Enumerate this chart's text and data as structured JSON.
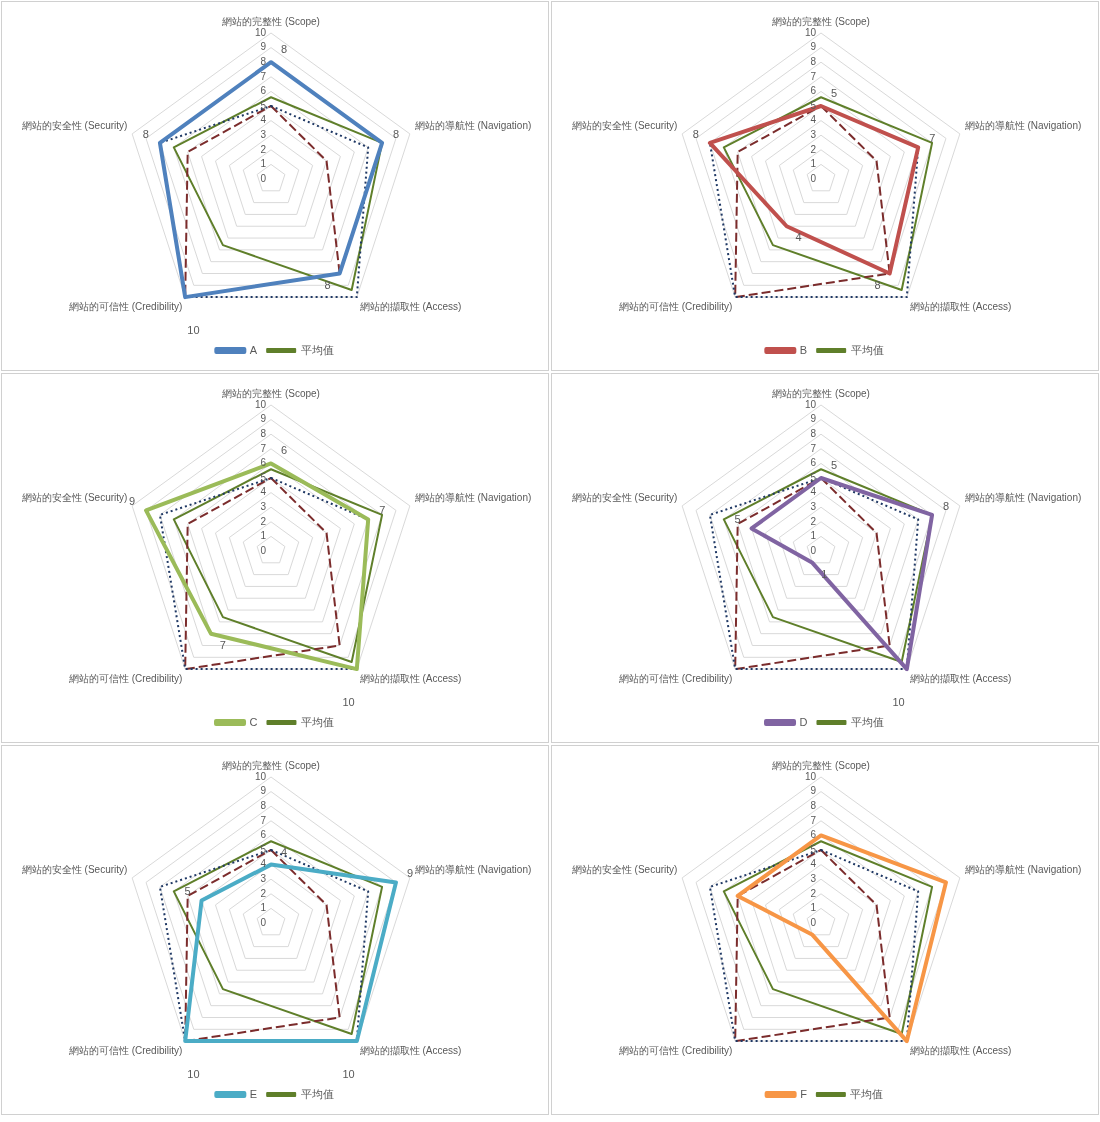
{
  "chart_data": [
    {
      "type": "radar",
      "categories": [
        "網站的完整性 (Scope)",
        "網站的導航性 (Navigation)",
        "網站的擷取性 (Access)",
        "網站的可信性 (Credibility)",
        "網站的安全性 (Security)"
      ],
      "ylim": [
        0,
        10
      ],
      "yticks": [
        0,
        1,
        2,
        3,
        4,
        5,
        6,
        7,
        8,
        9,
        10
      ],
      "grid": true,
      "legend": "bottom",
      "marker": "none",
      "series": [
        {
          "name": "A",
          "color": "#4f81bd",
          "values": [
            8,
            8,
            8,
            10,
            8
          ],
          "value_labels": [
            "8",
            "8",
            "8",
            "10",
            "8"
          ],
          "line_style": "solid"
        },
        {
          "color": "#1f3864",
          "values": [
            5,
            7,
            10,
            10,
            8
          ],
          "line_style": "dotted"
        },
        {
          "color": "#7b2c2c",
          "values": [
            5,
            4,
            8,
            10,
            6
          ],
          "line_style": "dashed"
        },
        {
          "name": "平均值",
          "color": "#5f7f2a",
          "values": [
            5.6,
            8,
            9.4,
            5.6,
            7
          ],
          "line_style": "solid"
        }
      ]
    },
    {
      "type": "radar",
      "categories": [
        "網站的完整性 (Scope)",
        "網站的導航性 (Navigation)",
        "網站的擷取性 (Access)",
        "網站的可信性 (Credibility)",
        "網站的安全性 (Security)"
      ],
      "ylim": [
        0,
        10
      ],
      "yticks": [
        0,
        1,
        2,
        3,
        4,
        5,
        6,
        7,
        8,
        9,
        10
      ],
      "grid": true,
      "legend": "bottom",
      "marker": "none",
      "series": [
        {
          "name": "B",
          "color": "#c0504d",
          "values": [
            5,
            7,
            8,
            4,
            8
          ],
          "value_labels": [
            "5",
            "7",
            "8",
            "4",
            "8"
          ],
          "line_style": "solid"
        },
        {
          "color": "#1f3864",
          "values": [
            5,
            7,
            10,
            10,
            8
          ],
          "line_style": "dotted"
        },
        {
          "color": "#7b2c2c",
          "values": [
            5,
            4,
            8,
            10,
            6
          ],
          "line_style": "dashed"
        },
        {
          "name": "平均值",
          "color": "#5f7f2a",
          "values": [
            5.6,
            8,
            9.4,
            5.6,
            7
          ],
          "line_style": "solid"
        }
      ]
    },
    {
      "type": "radar",
      "categories": [
        "網站的完整性 (Scope)",
        "網站的導航性 (Navigation)",
        "網站的擷取性 (Access)",
        "網站的可信性 (Credibility)",
        "網站的安全性 (Security)"
      ],
      "ylim": [
        0,
        10
      ],
      "yticks": [
        0,
        1,
        2,
        3,
        4,
        5,
        6,
        7,
        8,
        9,
        10
      ],
      "grid": true,
      "legend": "bottom",
      "marker": "none",
      "series": [
        {
          "name": "C",
          "color": "#9bbb59",
          "values": [
            6,
            7,
            10,
            7,
            9
          ],
          "value_labels": [
            "6",
            "7",
            "10",
            "7",
            "9"
          ],
          "line_style": "solid"
        },
        {
          "color": "#1f3864",
          "values": [
            5,
            7,
            10,
            10,
            8
          ],
          "line_style": "dotted"
        },
        {
          "color": "#7b2c2c",
          "values": [
            5,
            4,
            8,
            10,
            6
          ],
          "line_style": "dashed"
        },
        {
          "name": "平均值",
          "color": "#5f7f2a",
          "values": [
            5.6,
            8,
            9.4,
            5.6,
            7
          ],
          "line_style": "solid"
        }
      ]
    },
    {
      "type": "radar",
      "categories": [
        "網站的完整性 (Scope)",
        "網站的導航性 (Navigation)",
        "網站的擷取性 (Access)",
        "網站的可信性 (Credibility)",
        "網站的安全性 (Security)"
      ],
      "ylim": [
        0,
        10
      ],
      "yticks": [
        0,
        1,
        2,
        3,
        4,
        5,
        6,
        7,
        8,
        9,
        10
      ],
      "grid": true,
      "legend": "bottom",
      "marker": "none",
      "series": [
        {
          "name": "D",
          "color": "#8064a2",
          "values": [
            5,
            8,
            10,
            1,
            5
          ],
          "value_labels": [
            "5",
            "8",
            "10",
            "1",
            "5"
          ],
          "line_style": "solid"
        },
        {
          "color": "#1f3864",
          "values": [
            5,
            7,
            10,
            10,
            8
          ],
          "line_style": "dotted"
        },
        {
          "color": "#7b2c2c",
          "values": [
            5,
            4,
            8,
            10,
            6
          ],
          "line_style": "dashed"
        },
        {
          "name": "平均值",
          "color": "#5f7f2a",
          "values": [
            5.6,
            8,
            9.4,
            5.6,
            7
          ],
          "line_style": "solid"
        }
      ]
    },
    {
      "type": "radar",
      "categories": [
        "網站的完整性 (Scope)",
        "網站的導航性 (Navigation)",
        "網站的擷取性 (Access)",
        "網站的可信性 (Credibility)",
        "網站的安全性 (Security)"
      ],
      "ylim": [
        0,
        10
      ],
      "yticks": [
        0,
        1,
        2,
        3,
        4,
        5,
        6,
        7,
        8,
        9,
        10
      ],
      "grid": true,
      "legend": "bottom",
      "marker": "none",
      "series": [
        {
          "name": "E",
          "color": "#4bacc6",
          "values": [
            4,
            9,
            10,
            10,
            5
          ],
          "value_labels": [
            "4",
            "9",
            "10",
            "10",
            "5"
          ],
          "line_style": "solid"
        },
        {
          "color": "#1f3864",
          "values": [
            5,
            7,
            10,
            10,
            8
          ],
          "line_style": "dotted"
        },
        {
          "color": "#7b2c2c",
          "values": [
            5,
            4,
            8,
            10,
            6
          ],
          "line_style": "dashed"
        },
        {
          "name": "平均值",
          "color": "#5f7f2a",
          "values": [
            5.6,
            8,
            9.4,
            5.6,
            7
          ],
          "line_style": "solid"
        }
      ]
    },
    {
      "type": "radar",
      "categories": [
        "網站的完整性 (Scope)",
        "網站的導航性 (Navigation)",
        "網站的擷取性 (Access)",
        "網站的可信性 (Credibility)",
        "網站的安全性 (Security)"
      ],
      "ylim": [
        0,
        10
      ],
      "yticks": [
        0,
        1,
        2,
        3,
        4,
        5,
        6,
        7,
        8,
        9,
        10
      ],
      "grid": true,
      "legend": "bottom",
      "marker": "none",
      "series": [
        {
          "name": "F",
          "color": "#f79646",
          "values": [
            6,
            9,
            10,
            1,
            6
          ],
          "line_style": "solid"
        },
        {
          "color": "#1f3864",
          "values": [
            5,
            7,
            10,
            10,
            8
          ],
          "line_style": "dotted"
        },
        {
          "color": "#7b2c2c",
          "values": [
            5,
            4,
            8,
            10,
            6
          ],
          "line_style": "dashed"
        },
        {
          "name": "平均值",
          "color": "#5f7f2a",
          "values": [
            5.6,
            8,
            9.4,
            5.6,
            7
          ],
          "line_style": "solid"
        }
      ]
    }
  ]
}
